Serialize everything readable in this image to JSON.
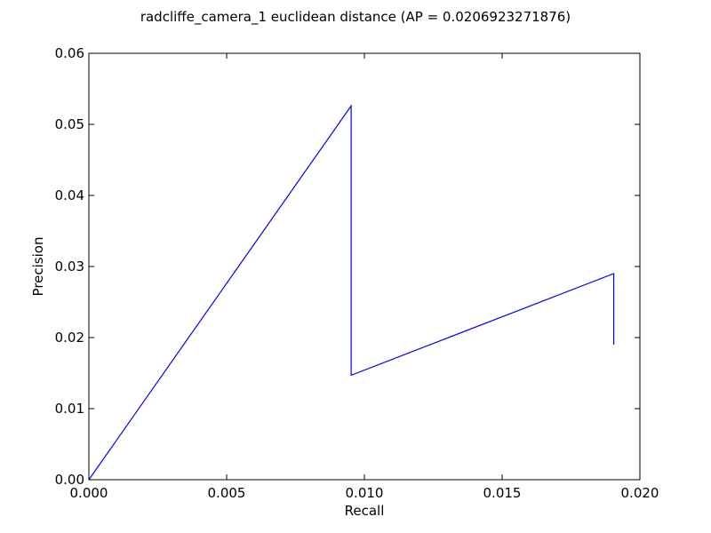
{
  "chart_data": {
    "type": "line",
    "title": "radcliffe_camera_1 euclidean distance  (AP = 0.0206923271876)",
    "xlabel": "Recall",
    "ylabel": "Precision",
    "xlim": [
      0.0,
      0.02
    ],
    "ylim": [
      0.0,
      0.06
    ],
    "x_ticks": [
      0.0,
      0.005,
      0.01,
      0.015,
      0.02
    ],
    "x_tick_labels": [
      "0.000",
      "0.005",
      "0.010",
      "0.015",
      "0.020"
    ],
    "y_ticks": [
      0.0,
      0.01,
      0.02,
      0.03,
      0.04,
      0.05,
      0.06
    ],
    "y_tick_labels": [
      "0.00",
      "0.01",
      "0.02",
      "0.03",
      "0.04",
      "0.05",
      "0.06"
    ],
    "grid": false,
    "legend": "none",
    "series": [
      {
        "color": "#0000ff",
        "x": [
          0.0,
          0.00952,
          0.00952,
          0.01905,
          0.01905
        ],
        "y": [
          0.0,
          0.0526,
          0.0147,
          0.029,
          0.019
        ]
      }
    ]
  }
}
